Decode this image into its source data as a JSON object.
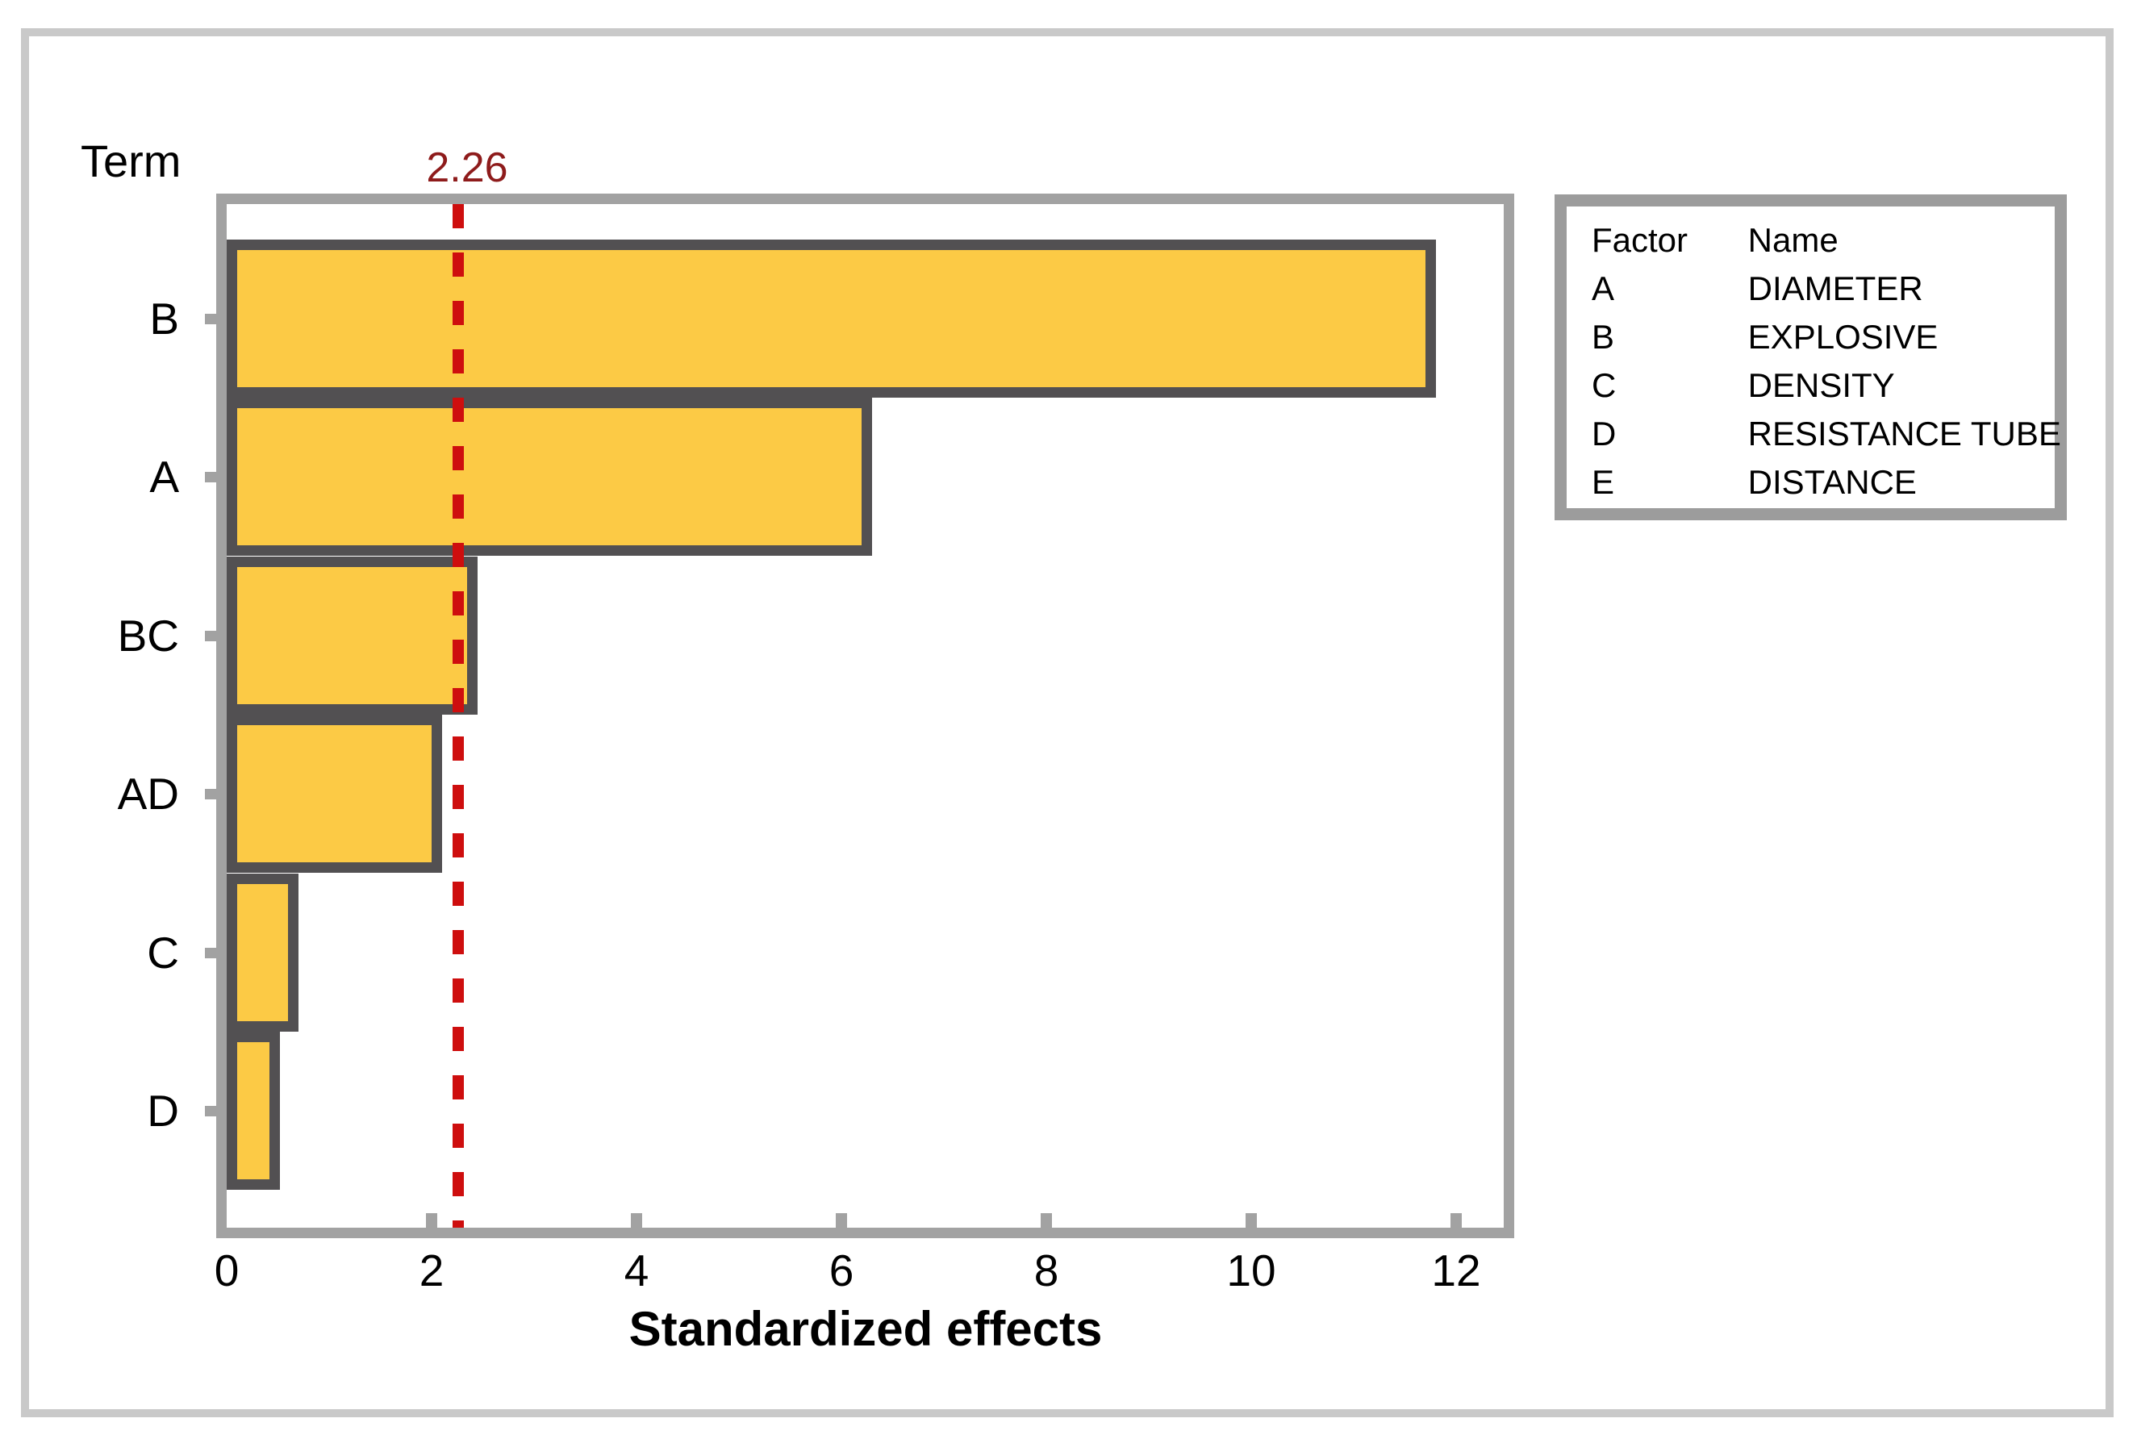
{
  "page": {
    "term_label": "Term"
  },
  "reference_line": {
    "label": "2.26",
    "value": 2.26,
    "line_color": "#CE0E0E",
    "label_color": "#8E1B1B"
  },
  "chart_data": {
    "type": "bar",
    "orientation": "horizontal",
    "title": "",
    "xlabel": "Standardized effects",
    "ylabel": "Term",
    "categories": [
      "B",
      "A",
      "BC",
      "AD",
      "C",
      "D"
    ],
    "values": [
      11.8,
      6.3,
      2.45,
      2.1,
      0.7,
      0.52
    ],
    "xticks": [
      0,
      2,
      4,
      6,
      8,
      10,
      12
    ],
    "xlim": [
      0,
      12.46
    ],
    "reference_line": 2.26,
    "grid": "off",
    "bar_color": "#FCCA45",
    "bar_border_color": "#525052",
    "frame_color": "#A2A2A2"
  },
  "legend": {
    "headers": [
      "Factor",
      "Name"
    ],
    "rows": [
      [
        "A",
        "DIAMETER"
      ],
      [
        "B",
        "EXPLOSIVE"
      ],
      [
        "C",
        "DENSITY"
      ],
      [
        "D",
        "RESISTANCE TUBE"
      ],
      [
        "E",
        "DISTANCE"
      ]
    ]
  }
}
